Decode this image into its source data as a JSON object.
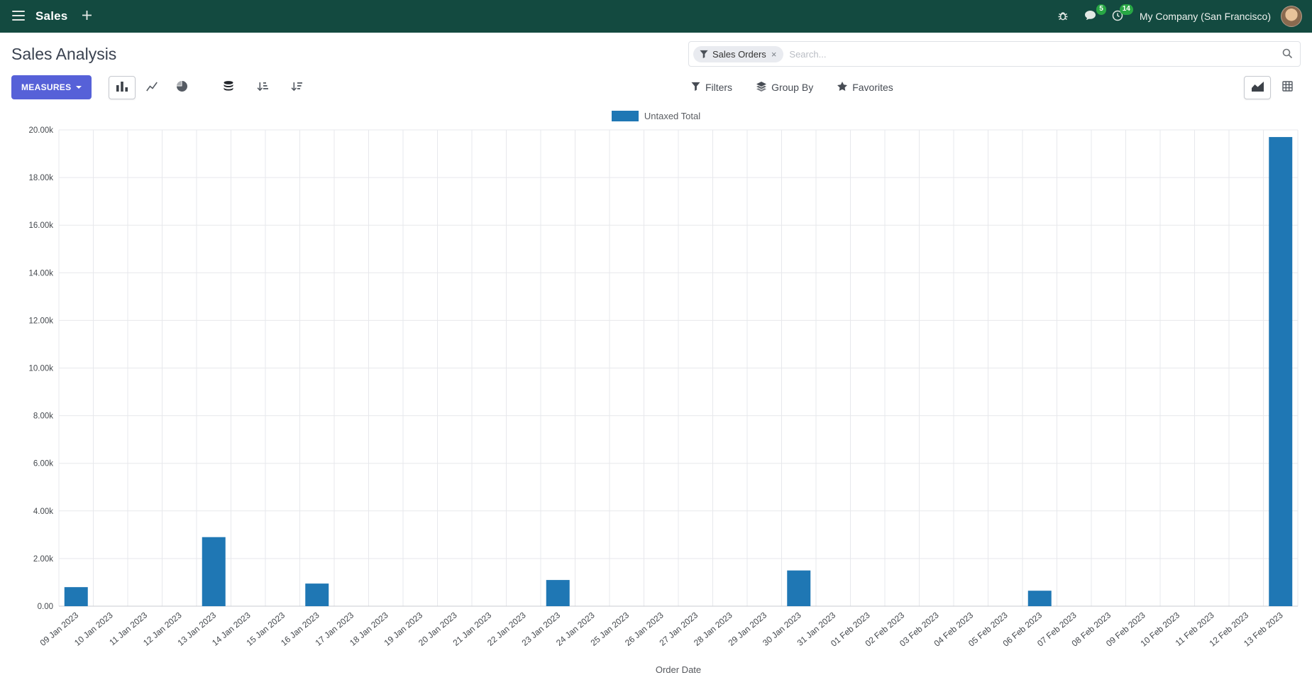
{
  "navbar": {
    "app_name": "Sales",
    "company": "My Company (San Francisco)",
    "messages_badge": "5",
    "activities_badge": "14"
  },
  "control_panel": {
    "title": "Sales Analysis",
    "measures_label": "MEASURES",
    "filters_label": "Filters",
    "group_by_label": "Group By",
    "favorites_label": "Favorites",
    "search": {
      "facet_label": "Sales Orders",
      "facet_remove": "×",
      "placeholder": "Search..."
    }
  },
  "colors": {
    "navbar_bg": "#134a40",
    "accent": "#5661d8",
    "bar": "#1f77b4",
    "badge": "#28a745"
  },
  "chart_data": {
    "type": "bar",
    "title": "",
    "legend": [
      "Untaxed Total"
    ],
    "legend_position": "top",
    "grid": true,
    "series_color": "#1f77b4",
    "xlabel": "Order Date",
    "ylabel": "",
    "ylim": [
      0,
      20000
    ],
    "ytick_step": 2000,
    "ytick_labels": [
      "0.00",
      "2.00k",
      "4.00k",
      "6.00k",
      "8.00k",
      "10.00k",
      "12.00k",
      "14.00k",
      "16.00k",
      "18.00k",
      "20.00k"
    ],
    "categories": [
      "09 Jan 2023",
      "10 Jan 2023",
      "11 Jan 2023",
      "12 Jan 2023",
      "13 Jan 2023",
      "14 Jan 2023",
      "15 Jan 2023",
      "16 Jan 2023",
      "17 Jan 2023",
      "18 Jan 2023",
      "19 Jan 2023",
      "20 Jan 2023",
      "21 Jan 2023",
      "22 Jan 2023",
      "23 Jan 2023",
      "24 Jan 2023",
      "25 Jan 2023",
      "26 Jan 2023",
      "27 Jan 2023",
      "28 Jan 2023",
      "29 Jan 2023",
      "30 Jan 2023",
      "31 Jan 2023",
      "01 Feb 2023",
      "02 Feb 2023",
      "03 Feb 2023",
      "04 Feb 2023",
      "05 Feb 2023",
      "06 Feb 2023",
      "07 Feb 2023",
      "08 Feb 2023",
      "09 Feb 2023",
      "10 Feb 2023",
      "11 Feb 2023",
      "12 Feb 2023",
      "13 Feb 2023"
    ],
    "values": [
      800,
      0,
      0,
      0,
      2900,
      0,
      0,
      950,
      0,
      0,
      0,
      0,
      0,
      0,
      1100,
      0,
      0,
      0,
      0,
      0,
      0,
      1500,
      0,
      0,
      0,
      0,
      0,
      0,
      650,
      0,
      0,
      0,
      0,
      0,
      0,
      19700
    ]
  }
}
